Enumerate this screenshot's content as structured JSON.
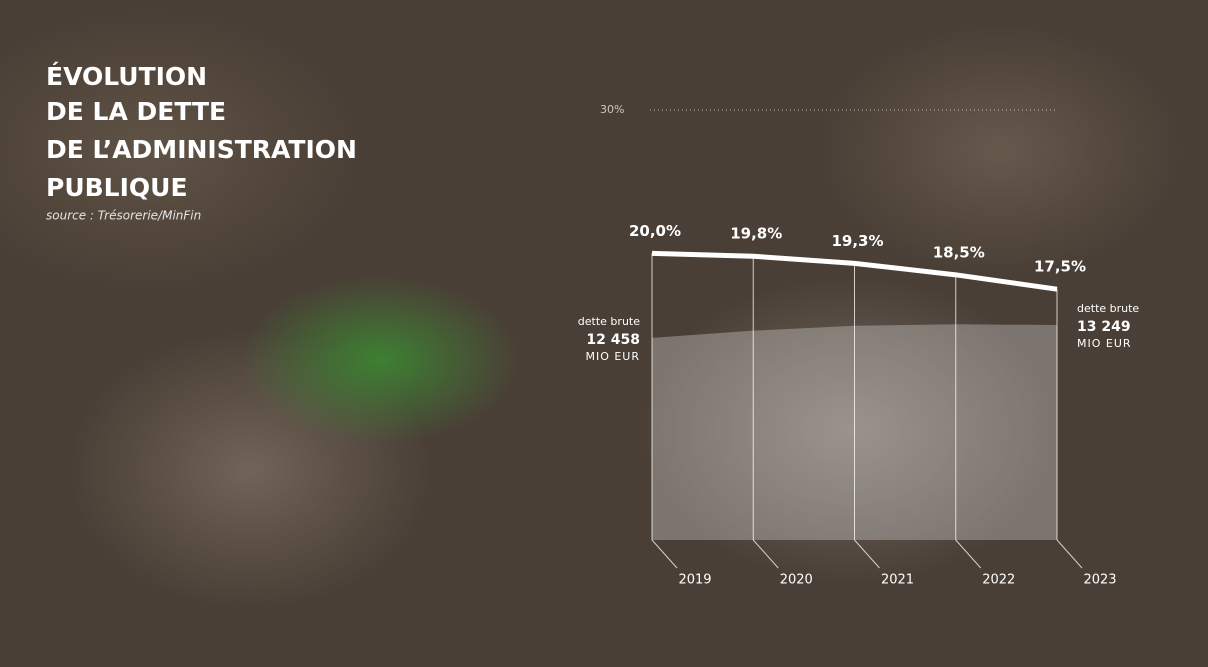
{
  "chart_data": {
    "type": "line",
    "title_lines": [
      "ÉVOLUTION",
      "DE LA DETTE",
      "DE L’ADMINISTRATION",
      "PUBLIQUE"
    ],
    "source": "source : Trésorerie/MinFin",
    "categories": [
      "2019",
      "2020",
      "2021",
      "2022",
      "2023"
    ],
    "ylim": [
      0,
      30
    ],
    "yticks": [
      {
        "value": 30,
        "label": "30%"
      }
    ],
    "y2lim": [
      0,
      26500
    ],
    "series": [
      {
        "type": "line",
        "color": "#ffffff",
        "values": [
          20.0,
          19.8,
          19.3,
          18.5,
          17.5
        ],
        "value_labels": [
          "20,0%",
          "19,8%",
          "19,3%",
          "18,5%",
          "17,5%"
        ]
      },
      {
        "type": "area",
        "axis": "y2",
        "name": "dette brute",
        "unit": "MIO EUR",
        "color": "#ffffff",
        "values": [
          12458,
          12900,
          13200,
          13300,
          13249
        ],
        "value_labels": [
          "12 458",
          null,
          null,
          null,
          "13 249"
        ]
      }
    ]
  }
}
